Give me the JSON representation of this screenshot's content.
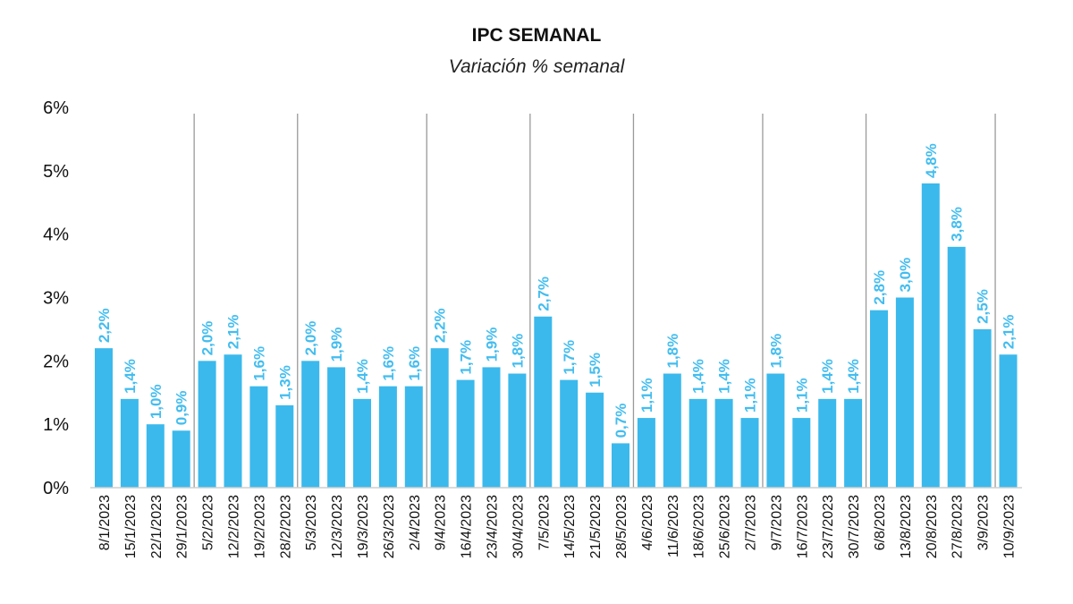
{
  "chart_data": {
    "type": "bar",
    "title": "IPC SEMANAL",
    "subtitle": "Variación % semanal",
    "xlabel": "",
    "ylabel": "",
    "ylim": [
      0,
      6
    ],
    "yticks": [
      "0%",
      "1%",
      "2%",
      "3%",
      "4%",
      "5%",
      "6%"
    ],
    "grid": false,
    "bar_color": "#3bb9ec",
    "label_color": "#43bdef",
    "categories": [
      "8/1/2023",
      "15/1/2023",
      "22/1/2023",
      "29/1/2023",
      "5/2/2023",
      "12/2/2023",
      "19/2/2023",
      "28/2/2023",
      "5/3/2023",
      "12/3/2023",
      "19/3/2023",
      "26/3/2023",
      "2/4/2023",
      "9/4/2023",
      "16/4/2023",
      "23/4/2023",
      "30/4/2023",
      "7/5/2023",
      "14/5/2023",
      "21/5/2023",
      "28/5/2023",
      "4/6/2023",
      "11/6/2023",
      "18/6/2023",
      "25/6/2023",
      "2/7/2023",
      "9/7/2023",
      "16/7/2023",
      "23/7/2023",
      "30/7/2023",
      "6/8/2023",
      "13/8/2023",
      "20/8/2023",
      "27/8/2023",
      "3/9/2023",
      "10/9/2023"
    ],
    "values": [
      2.2,
      1.4,
      1.0,
      0.9,
      2.0,
      2.1,
      1.6,
      1.3,
      2.0,
      1.9,
      1.4,
      1.6,
      1.6,
      2.2,
      1.7,
      1.9,
      1.8,
      2.7,
      1.7,
      1.5,
      0.7,
      1.1,
      1.8,
      1.4,
      1.4,
      1.1,
      1.8,
      1.1,
      1.4,
      1.4,
      2.8,
      3.0,
      4.8,
      3.8,
      2.5,
      2.1
    ],
    "data_labels": [
      "2,2%",
      "1,4%",
      "1,0%",
      "0,9%",
      "2,0%",
      "2,1%",
      "1,6%",
      "1,3%",
      "2,0%",
      "1,9%",
      "1,4%",
      "1,6%",
      "1,6%",
      "2,2%",
      "1,7%",
      "1,9%",
      "1,8%",
      "2,7%",
      "1,7%",
      "1,5%",
      "0,7%",
      "1,1%",
      "1,8%",
      "1,4%",
      "1,4%",
      "1,1%",
      "1,8%",
      "1,1%",
      "1,4%",
      "1,4%",
      "2,8%",
      "3,0%",
      "4,8%",
      "3,8%",
      "2,5%",
      "2,1%"
    ],
    "month_separators_after_index": [
      3,
      7,
      12,
      16,
      20,
      25,
      29,
      34
    ]
  }
}
